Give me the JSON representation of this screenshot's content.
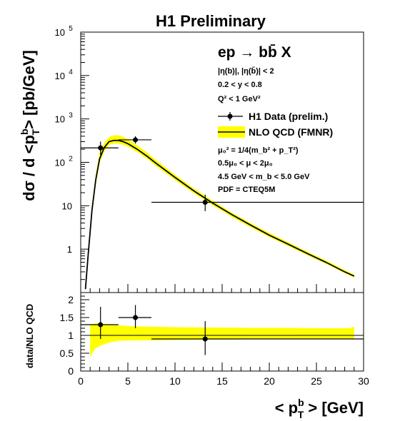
{
  "chart_data": [
    {
      "type": "line",
      "title": "H1 Preliminary",
      "ylabel_parts": {
        "pre": "dσ / d <p",
        "sup": "b",
        "sub": "T",
        "post": "> [pb/GeV]"
      },
      "yscale": "log",
      "ylim": [
        0.1,
        100000
      ],
      "xlim": [
        0,
        30
      ],
      "yticks": [
        {
          "v": 1,
          "label": "1"
        },
        {
          "v": 10,
          "label": "10"
        },
        {
          "v": 100,
          "base": "10",
          "exp": "2"
        },
        {
          "v": 1000,
          "base": "10",
          "exp": "3"
        },
        {
          "v": 10000,
          "base": "10",
          "exp": "4"
        },
        {
          "v": 100000,
          "base": "10",
          "exp": "5"
        }
      ],
      "process": "ep → bb̄ X",
      "cuts": [
        "|η(b)|, |η(b̄)| < 2",
        "0.2 < y < 0.8",
        "Q² < 1 GeV²"
      ],
      "legend": [
        {
          "label": "H1 Data (prelim.)",
          "kind": "points"
        },
        {
          "label": "NLO QCD (FMNR)",
          "kind": "band"
        }
      ],
      "theory_notes": [
        "μ₀² = 1/4(m_b² + p_T²)",
        "0.5μ₀ < μ < 2μ₀",
        "4.5 GeV < m_b < 5.0 GeV",
        "PDF = CTEQ5M"
      ],
      "series": [
        {
          "name": "H1 Data (prelim.)",
          "points": [
            {
              "x": 2.1,
              "xlo": 0.0,
              "xhi": 4.0,
              "y": 215,
              "ylo": 150,
              "yhi": 300
            },
            {
              "x": 5.8,
              "xlo": 4.0,
              "xhi": 7.5,
              "y": 330,
              "ylo": 270,
              "yhi": 400
            },
            {
              "x": 13.2,
              "xlo": 7.5,
              "xhi": 30.0,
              "y": 12,
              "ylo": 7.5,
              "yhi": 18
            }
          ]
        },
        {
          "name": "NLO QCD (FMNR)",
          "x": [
            0.5,
            0.8,
            1.2,
            1.6,
            2.0,
            2.5,
            3.0,
            3.5,
            4.0,
            4.5,
            5.0,
            6.0,
            7.0,
            8.0,
            10.0,
            12.0,
            14.0,
            16.0,
            18.0,
            20.0,
            22.0,
            24.0,
            26.0,
            28.0,
            29.0
          ],
          "y": [
            0.12,
            0.8,
            8,
            40,
            120,
            220,
            300,
            320,
            320,
            300,
            270,
            200,
            140,
            95,
            45,
            22,
            11.5,
            6.3,
            3.6,
            2.1,
            1.3,
            0.8,
            0.5,
            0.3,
            0.24
          ],
          "band_lo": [
            0.1,
            0.6,
            6,
            30,
            95,
            180,
            250,
            270,
            270,
            255,
            230,
            172,
            122,
            82,
            39,
            19.5,
            10.2,
            5.6,
            3.2,
            1.9,
            1.18,
            0.73,
            0.46,
            0.28,
            0.22
          ],
          "band_hi": [
            0.15,
            1.0,
            10,
            55,
            160,
            285,
            380,
            420,
            420,
            390,
            340,
            245,
            170,
            112,
            52,
            25,
            13,
            7.0,
            4.0,
            2.35,
            1.45,
            0.88,
            0.55,
            0.33,
            0.26
          ]
        }
      ]
    },
    {
      "type": "line",
      "ylabel": "data/NLO QCD",
      "xlabel_parts": {
        "pre": "< p",
        "sup": "b",
        "sub": "T",
        "post": " > [GeV]"
      },
      "xlim": [
        0,
        30
      ],
      "ylim": [
        0,
        2.2
      ],
      "yticks": [
        "0",
        "0.5",
        "1",
        "1.5",
        "2"
      ],
      "xticks": [
        "0",
        "5",
        "10",
        "15",
        "20",
        "25",
        "30"
      ],
      "reference_line": 1,
      "series": [
        {
          "name": "data/NLO",
          "points": [
            {
              "x": 2.1,
              "xlo": 0.0,
              "xhi": 4.0,
              "y": 1.3,
              "ylo": 0.9,
              "yhi": 1.8
            },
            {
              "x": 5.8,
              "xlo": 4.0,
              "xhi": 7.5,
              "y": 1.5,
              "ylo": 1.2,
              "yhi": 1.85
            },
            {
              "x": 13.2,
              "xlo": 7.5,
              "xhi": 30.0,
              "y": 0.9,
              "ylo": 0.45,
              "yhi": 1.4
            }
          ]
        },
        {
          "name": "NLO uncertainty",
          "x": [
            1.0,
            1.5,
            2.0,
            3.0,
            4.0,
            6.0,
            8.0,
            10.0,
            14.0,
            18.0,
            22.0,
            26.0,
            28.5,
            29.0
          ],
          "band_lo": [
            0.4,
            0.62,
            0.7,
            0.8,
            0.85,
            0.86,
            0.86,
            0.87,
            0.88,
            0.89,
            0.9,
            0.91,
            0.91,
            0.91
          ],
          "band_hi": [
            1.3,
            1.34,
            1.33,
            1.3,
            1.28,
            1.25,
            1.24,
            1.23,
            1.22,
            1.21,
            1.21,
            1.2,
            1.2,
            1.25
          ]
        }
      ]
    }
  ]
}
